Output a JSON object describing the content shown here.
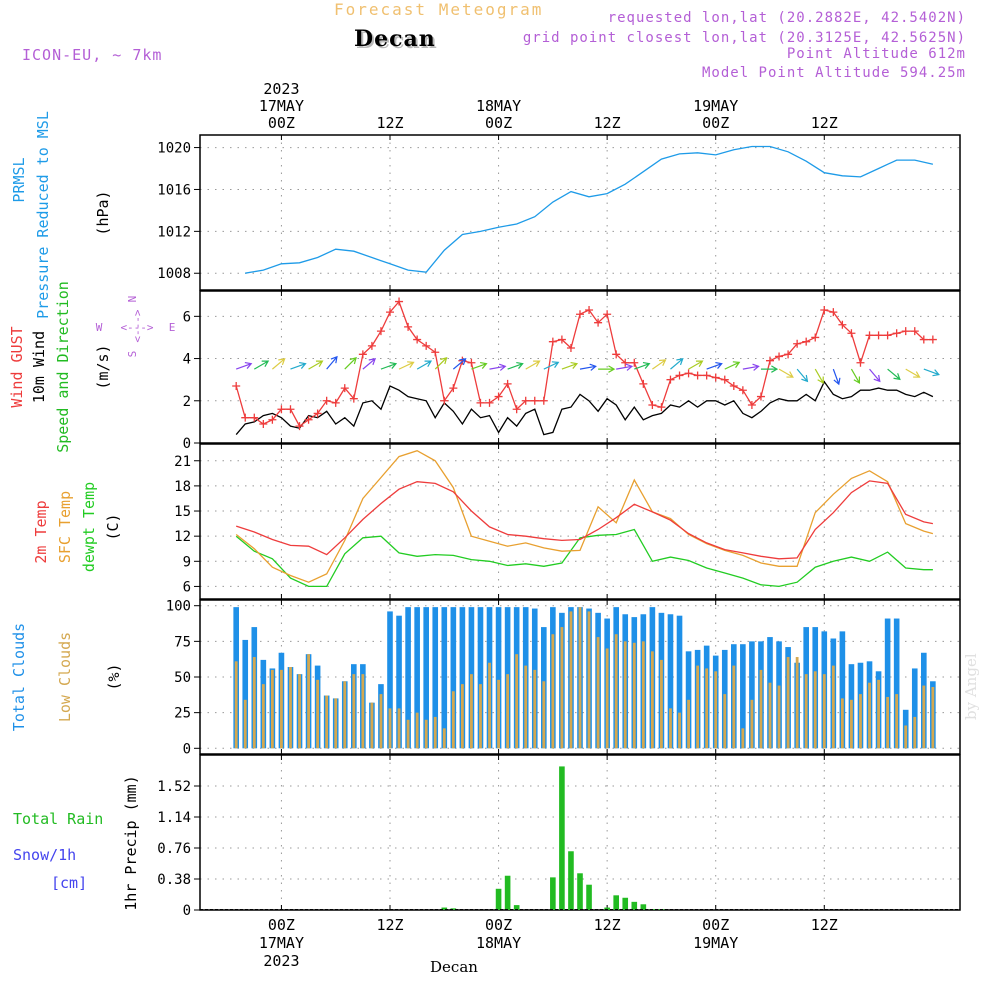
{
  "header": {
    "title": "Forecast Meteogram",
    "location": "Decan",
    "model": "ICON-EU, ~ 7km",
    "requested": "requested lon,lat (20.2882E, 42.5402N)",
    "grid_point": "grid point closest lon,lat (20.3125E, 42.5625N)",
    "point_altitude": "Point Altitude 612m",
    "model_altitude": "Model Point Altitude 594.25m",
    "footer_location": "Decan",
    "watermark": "by Angel"
  },
  "colors": {
    "pressure": "#1e9be8",
    "gust": "#ee3c3c",
    "wind": "#000000",
    "direction": "#22bb22",
    "temp2m": "#ee3c3c",
    "sfc": "#e8a030",
    "dewpt": "#22cc22",
    "total_clouds": "#1e90e8",
    "low_clouds": "#d4a850",
    "rain": "#22bb22",
    "snow": "#4444ee",
    "label_purple": "#b45fd6"
  },
  "chart_data": [
    {
      "id": "pressure",
      "type": "line",
      "ylim": [
        1006.4,
        1021.2
      ],
      "yticks": [
        1008,
        1012,
        1016,
        1020
      ],
      "ylabel_lines": [
        "PRMSL",
        "Pressure Reduced to MSL"
      ],
      "unit": "(hPa)",
      "x": [
        -4,
        -2,
        0,
        2,
        4,
        6,
        8,
        10,
        12,
        14,
        16,
        18,
        20,
        22,
        24,
        26,
        28,
        30,
        32,
        34,
        36,
        38,
        40,
        42,
        44,
        46,
        48,
        50,
        52,
        54,
        56,
        58,
        60,
        62,
        64,
        66,
        68,
        70,
        72
      ],
      "series": [
        {
          "color_key": "pressure",
          "values": [
            1008.0,
            1008.3,
            1008.9,
            1009.0,
            1009.5,
            1010.3,
            1010.1,
            1009.5,
            1008.9,
            1008.3,
            1008.1,
            1010.2,
            1011.7,
            1012.0,
            1012.4,
            1012.7,
            1013.4,
            1014.8,
            1015.8,
            1015.3,
            1015.6,
            1016.5,
            1017.7,
            1018.9,
            1019.4,
            1019.5,
            1019.3,
            1019.8,
            1020.1,
            1020.1,
            1019.6,
            1018.7,
            1017.6,
            1017.3,
            1017.2,
            1018.0,
            1018.8,
            1018.8,
            1018.4
          ]
        }
      ]
    },
    {
      "id": "wind",
      "type": "line",
      "ylim": [
        0,
        7.2
      ],
      "yticks": [
        0,
        2,
        4,
        6
      ],
      "ylabel_lines": [
        "Wind GUST",
        "10m Wind",
        "Speed and Direction"
      ],
      "unit": "(m/s)",
      "compass": {
        "n": "N",
        "s": "S",
        "w": "W",
        "e": "E",
        "arrow": "<--->"
      },
      "x": [
        -5,
        -4,
        -3,
        -2,
        -1,
        0,
        1,
        2,
        3,
        4,
        5,
        6,
        7,
        8,
        9,
        10,
        11,
        12,
        13,
        14,
        15,
        16,
        17,
        18,
        19,
        20,
        21,
        22,
        23,
        24,
        25,
        26,
        27,
        28,
        29,
        30,
        31,
        32,
        33,
        34,
        35,
        36,
        37,
        38,
        39,
        40,
        41,
        42,
        43,
        44,
        45,
        46,
        47,
        48,
        49,
        50,
        51,
        52,
        53,
        54,
        55,
        56,
        57,
        58,
        59,
        60,
        61,
        62,
        63,
        64,
        65,
        66,
        67,
        68,
        69,
        70,
        71,
        72
      ],
      "series": [
        {
          "color_key": "wind",
          "values": [
            0.4,
            0.9,
            1.0,
            1.3,
            1.4,
            1.2,
            0.8,
            0.7,
            1.3,
            1.2,
            1.5,
            0.9,
            1.2,
            0.8,
            1.9,
            2.0,
            1.6,
            2.7,
            2.5,
            2.2,
            2.1,
            2.0,
            1.2,
            1.9,
            1.5,
            0.9,
            1.6,
            1.2,
            1.3,
            0.5,
            1.2,
            0.8,
            1.4,
            1.6,
            0.4,
            0.5,
            1.6,
            1.7,
            2.3,
            2.0,
            1.5,
            2.1,
            1.8,
            1.1,
            1.7,
            1.1,
            1.3,
            1.4,
            1.8,
            1.7,
            2.0,
            1.7,
            2.0,
            2.0,
            1.8,
            2.0,
            1.4,
            1.2,
            1.5,
            1.9,
            2.1,
            2.0,
            2.0,
            2.3,
            2.0,
            2.9,
            2.3,
            2.1,
            2.2,
            2.5,
            2.5,
            2.6,
            2.5,
            2.5,
            2.3,
            2.2,
            2.4,
            2.2
          ]
        },
        {
          "color_key": "gust",
          "values": [
            2.7,
            1.2,
            1.2,
            0.9,
            1.1,
            1.6,
            1.6,
            0.8,
            1.1,
            1.4,
            2.0,
            1.9,
            2.6,
            2.1,
            4.2,
            4.6,
            5.3,
            6.2,
            6.7,
            5.5,
            4.9,
            4.6,
            4.3,
            2.0,
            2.6,
            3.9,
            3.8,
            1.9,
            1.9,
            2.2,
            2.8,
            1.6,
            2.0,
            2.0,
            2.0,
            4.8,
            4.9,
            4.5,
            6.1,
            6.3,
            5.7,
            6.1,
            4.2,
            3.8,
            3.8,
            2.8,
            1.8,
            1.7,
            3.0,
            3.2,
            3.3,
            3.2,
            3.2,
            3.1,
            3.0,
            2.7,
            2.5,
            1.8,
            2.2,
            3.9,
            4.1,
            4.2,
            4.7,
            4.8,
            5.0,
            6.3,
            6.2,
            5.6,
            5.2,
            3.8,
            5.1,
            5.1,
            5.1,
            5.2,
            5.3,
            5.3,
            4.9,
            4.9
          ]
        }
      ],
      "direction_arrows": {
        "y": 3.5,
        "x": [
          -5,
          -3,
          -1,
          1,
          3,
          5,
          7,
          9,
          11,
          13,
          15,
          17,
          19,
          21,
          23,
          25,
          27,
          29,
          31,
          33,
          35,
          37,
          39,
          41,
          43,
          45,
          47,
          49,
          51,
          53,
          55,
          57,
          59,
          61,
          63,
          65,
          67,
          69,
          71
        ],
        "dir_deg": [
          250,
          240,
          230,
          250,
          240,
          220,
          225,
          230,
          250,
          245,
          240,
          225,
          230,
          250,
          260,
          250,
          240,
          245,
          250,
          260,
          270,
          260,
          250,
          235,
          230,
          240,
          250,
          245,
          260,
          270,
          300,
          320,
          330,
          340,
          330,
          320,
          310,
          300,
          290
        ]
      }
    },
    {
      "id": "temperature",
      "type": "line",
      "ylim": [
        4.5,
        23
      ],
      "yticks": [
        6,
        9,
        12,
        15,
        18,
        21
      ],
      "ylabel_lines": [
        "2m Temp",
        "SFC Temp",
        "dewpt Temp"
      ],
      "unit": "(C)",
      "x": [
        -5,
        -3,
        -1,
        1,
        3,
        5,
        7,
        9,
        11,
        13,
        15,
        17,
        19,
        21,
        23,
        25,
        27,
        29,
        31,
        33,
        35,
        37,
        39,
        41,
        43,
        45,
        47,
        49,
        51,
        53,
        55,
        57,
        59,
        61,
        63,
        65,
        67,
        69,
        71,
        72
      ],
      "series": [
        {
          "color_key": "temp2m",
          "values": [
            13.2,
            12.5,
            11.6,
            10.9,
            10.8,
            9.8,
            11.8,
            14.0,
            15.9,
            17.6,
            18.5,
            18.3,
            17.3,
            15.0,
            13.1,
            12.2,
            12.0,
            11.7,
            11.5,
            11.6,
            12.8,
            14.2,
            15.8,
            14.9,
            13.9,
            12.3,
            11.2,
            10.4,
            10.0,
            9.6,
            9.3,
            9.4,
            12.8,
            14.8,
            17.2,
            18.6,
            18.3,
            14.6,
            13.7,
            13.5
          ]
        },
        {
          "color_key": "sfc",
          "values": [
            12.2,
            10.5,
            8.3,
            7.3,
            6.5,
            7.5,
            11.5,
            16.5,
            19.0,
            21.5,
            22.2,
            21.0,
            17.8,
            12.0,
            11.4,
            10.8,
            11.2,
            10.6,
            10.2,
            10.3,
            15.5,
            13.6,
            18.7,
            14.9,
            14.1,
            12.2,
            11.1,
            10.3,
            9.7,
            8.8,
            8.4,
            8.4,
            14.8,
            17.0,
            18.9,
            19.8,
            18.5,
            13.5,
            12.6,
            12.3
          ]
        },
        {
          "color_key": "dewpt",
          "values": [
            12.0,
            10.2,
            9.3,
            7.0,
            6.0,
            6.0,
            9.9,
            11.8,
            12.0,
            10.0,
            9.6,
            9.8,
            9.7,
            9.2,
            9.0,
            8.5,
            8.7,
            8.4,
            8.8,
            11.8,
            12.1,
            12.2,
            12.8,
            9.0,
            9.5,
            9.1,
            8.2,
            7.6,
            7.0,
            6.2,
            6.0,
            6.5,
            8.3,
            9.0,
            9.5,
            9.0,
            10.1,
            8.2,
            8.0,
            8.0
          ]
        }
      ]
    },
    {
      "id": "clouds",
      "type": "bar",
      "ylim": [
        -4,
        104
      ],
      "yticks": [
        0,
        25,
        50,
        75,
        100
      ],
      "ylabel_lines": [
        "Total Clouds",
        "Low Clouds"
      ],
      "unit": "(%)",
      "x": [
        -5,
        -4,
        -3,
        -2,
        -1,
        0,
        1,
        2,
        3,
        4,
        5,
        6,
        7,
        8,
        9,
        10,
        11,
        12,
        13,
        14,
        15,
        16,
        17,
        18,
        19,
        20,
        21,
        22,
        23,
        24,
        25,
        26,
        27,
        28,
        29,
        30,
        31,
        32,
        33,
        34,
        35,
        36,
        37,
        38,
        39,
        40,
        41,
        42,
        43,
        44,
        45,
        46,
        47,
        48,
        49,
        50,
        51,
        52,
        53,
        54,
        55,
        56,
        57,
        58,
        59,
        60,
        61,
        62,
        63,
        64,
        65,
        66,
        67,
        68,
        69,
        70,
        71,
        72
      ],
      "series": [
        {
          "color_key": "total_clouds",
          "values": [
            99,
            76,
            85,
            62,
            56,
            67,
            57,
            52,
            66,
            58,
            37,
            35,
            47,
            59,
            59,
            32,
            45,
            96,
            93,
            99,
            99,
            99,
            99,
            99,
            99,
            99,
            99,
            99,
            99,
            99,
            99,
            99,
            99,
            98,
            85,
            99,
            95,
            99,
            99,
            98,
            95,
            91,
            99,
            94,
            92,
            94,
            99,
            95,
            94,
            93,
            68,
            69,
            72,
            65,
            69,
            73,
            73,
            75,
            75,
            78,
            75,
            71,
            60,
            85,
            85,
            82,
            77,
            82,
            59,
            60,
            61,
            54,
            91,
            91,
            27,
            56,
            67,
            47
          ]
        },
        {
          "color_key": "low_clouds",
          "values": [
            61,
            34,
            64,
            45,
            55,
            55,
            57,
            52,
            66,
            48,
            37,
            35,
            47,
            52,
            52,
            32,
            38,
            28,
            28,
            20,
            25,
            20,
            22,
            14,
            40,
            45,
            52,
            45,
            60,
            48,
            52,
            66,
            58,
            55,
            47,
            80,
            85,
            96,
            99,
            96,
            78,
            70,
            80,
            75,
            74,
            75,
            68,
            62,
            28,
            25,
            34,
            58,
            56,
            54,
            38,
            58,
            14,
            34,
            55,
            46,
            44,
            64,
            64,
            52,
            54,
            52,
            58,
            35,
            34,
            38,
            46,
            48,
            36,
            38,
            16,
            22,
            44,
            43
          ]
        }
      ]
    },
    {
      "id": "precip",
      "type": "bar",
      "ylim": [
        0,
        1.9
      ],
      "yticks": [
        0,
        0.38,
        0.76,
        1.14,
        1.52
      ],
      "ytick_labels": [
        "0",
        "0.38",
        "0.76",
        "1.14",
        "1.52"
      ],
      "ylabel_lines": [
        "1hr Precip (mm)"
      ],
      "legend": {
        "total_rain": "Total Rain",
        "snow": "Snow/1h",
        "snow_unit": "[cm]"
      },
      "x": [
        18,
        19,
        24,
        25,
        26,
        30,
        31,
        32,
        33,
        34,
        36,
        37,
        38,
        39,
        40,
        41,
        42
      ],
      "series": [
        {
          "color_key": "rain",
          "values": [
            0.03,
            0.02,
            0.26,
            0.42,
            0.06,
            0.4,
            1.76,
            0.72,
            0.45,
            0.31,
            0.03,
            0.18,
            0.15,
            0.1,
            0.07,
            0.01,
            0.01
          ]
        }
      ]
    }
  ],
  "time_axis": {
    "range_hours": [
      -9,
      75
    ],
    "tick_hours": [
      0,
      12,
      24,
      36,
      48,
      60
    ],
    "top_labels": [
      {
        "hour": 0,
        "lines": [
          "2023",
          "17MAY",
          "00Z"
        ]
      },
      {
        "hour": 12,
        "lines": [
          "12Z"
        ]
      },
      {
        "hour": 24,
        "lines": [
          "18MAY",
          "00Z"
        ]
      },
      {
        "hour": 36,
        "lines": [
          "12Z"
        ]
      },
      {
        "hour": 48,
        "lines": [
          "19MAY",
          "00Z"
        ]
      },
      {
        "hour": 60,
        "lines": [
          "12Z"
        ]
      }
    ],
    "bottom_labels": [
      {
        "hour": 0,
        "lines": [
          "00Z",
          "17MAY",
          "2023"
        ]
      },
      {
        "hour": 12,
        "lines": [
          "12Z"
        ]
      },
      {
        "hour": 24,
        "lines": [
          "00Z",
          "18MAY"
        ]
      },
      {
        "hour": 36,
        "lines": [
          "12Z"
        ]
      },
      {
        "hour": 48,
        "lines": [
          "00Z",
          "19MAY"
        ]
      },
      {
        "hour": 60,
        "lines": [
          "12Z"
        ]
      }
    ]
  }
}
